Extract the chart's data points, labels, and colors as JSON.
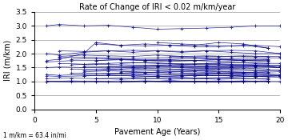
{
  "title": "Rate of Change of IRI < 0.02 m/km/year",
  "xlabel": "Pavement Age (Years)",
  "ylabel": "IRI (m/km)",
  "note": "1 m/km = 63.4 in/mi",
  "xlim": [
    0,
    20
  ],
  "ylim": [
    0,
    3.5
  ],
  "xticks": [
    0,
    5,
    10,
    15,
    20
  ],
  "yticks": [
    0.0,
    0.5,
    1.0,
    1.5,
    2.0,
    2.5,
    3.0,
    3.5
  ],
  "line_color": "#00008B",
  "marker": "+",
  "series": [
    {
      "x": [
        1,
        2,
        4,
        6,
        8,
        10,
        12,
        14,
        16,
        18,
        20
      ],
      "y": [
        3.0,
        3.05,
        3.0,
        3.02,
        2.95,
        2.88,
        2.9,
        2.92,
        2.95,
        3.0,
        3.0
      ]
    },
    {
      "x": [
        1,
        2,
        4,
        5,
        7,
        9,
        11,
        13,
        15,
        17,
        19
      ],
      "y": [
        1.75,
        1.8,
        2.0,
        2.4,
        2.3,
        2.35,
        2.3,
        2.3,
        2.4,
        2.35,
        2.2
      ]
    },
    {
      "x": [
        1,
        2,
        4,
        6,
        8,
        10,
        12,
        14,
        16,
        18,
        20
      ],
      "y": [
        2.0,
        1.95,
        2.05,
        2.1,
        2.05,
        2.1,
        2.05,
        2.1,
        2.05,
        2.0,
        2.0
      ]
    },
    {
      "x": [
        1,
        3,
        5,
        7,
        9,
        11,
        13,
        15,
        17,
        19
      ],
      "y": [
        1.7,
        1.75,
        1.75,
        1.8,
        1.75,
        1.75,
        1.75,
        1.8,
        1.75,
        1.75
      ]
    },
    {
      "x": [
        1,
        2,
        4,
        6,
        8,
        10,
        12,
        14,
        16,
        18,
        20
      ],
      "y": [
        1.5,
        1.52,
        1.5,
        1.48,
        1.5,
        1.52,
        1.5,
        1.48,
        1.5,
        1.52,
        1.5
      ]
    },
    {
      "x": [
        1,
        2,
        4,
        6,
        8,
        10,
        12,
        14,
        16,
        18,
        20
      ],
      "y": [
        1.25,
        1.22,
        1.25,
        1.28,
        1.25,
        1.22,
        1.25,
        1.28,
        1.25,
        1.22,
        1.2
      ]
    },
    {
      "x": [
        1,
        2,
        4,
        6,
        8,
        10,
        12,
        14,
        16,
        18,
        20
      ],
      "y": [
        1.2,
        1.18,
        1.2,
        1.22,
        1.2,
        1.18,
        1.2,
        1.22,
        1.2,
        1.18,
        1.2
      ]
    },
    {
      "x": [
        1,
        3,
        5,
        7,
        9,
        11,
        13,
        15,
        17,
        19
      ],
      "y": [
        1.0,
        0.98,
        1.0,
        1.02,
        1.0,
        0.98,
        1.0,
        1.02,
        1.0,
        1.0
      ]
    },
    {
      "x": [
        1,
        3,
        5,
        7,
        9,
        11,
        13,
        15,
        17,
        19
      ],
      "y": [
        1.1,
        1.12,
        1.1,
        1.08,
        1.1,
        1.12,
        1.1,
        1.08,
        1.1,
        1.1
      ]
    },
    {
      "x": [
        2,
        4,
        6,
        8,
        10,
        12,
        14,
        16,
        18,
        20
      ],
      "y": [
        1.9,
        1.95,
        1.92,
        1.9,
        1.95,
        1.9,
        1.92,
        1.9,
        1.9,
        1.9
      ]
    },
    {
      "x": [
        2,
        4,
        6,
        8,
        10,
        12,
        14,
        16,
        18,
        20
      ],
      "y": [
        1.65,
        1.62,
        1.65,
        1.68,
        1.65,
        1.62,
        1.65,
        1.68,
        1.65,
        1.65
      ]
    },
    {
      "x": [
        2,
        4,
        6,
        8,
        10,
        12,
        14,
        16,
        18,
        20
      ],
      "y": [
        1.85,
        1.88,
        1.85,
        1.82,
        1.85,
        1.88,
        1.85,
        1.82,
        1.85,
        1.85
      ]
    },
    {
      "x": [
        2,
        4,
        6,
        8,
        10,
        12,
        14,
        16,
        18,
        20
      ],
      "y": [
        2.1,
        2.08,
        2.1,
        2.12,
        2.1,
        2.08,
        2.1,
        2.12,
        2.1,
        2.0
      ]
    },
    {
      "x": [
        3,
        5,
        7,
        9,
        11,
        13,
        15,
        17,
        19
      ],
      "y": [
        1.6,
        1.62,
        1.6,
        1.58,
        1.6,
        1.62,
        1.6,
        1.58,
        1.6
      ]
    },
    {
      "x": [
        3,
        5,
        7,
        9,
        11,
        13,
        15,
        17,
        19
      ],
      "y": [
        1.45,
        1.42,
        1.45,
        1.48,
        1.45,
        1.42,
        1.45,
        1.48,
        1.45
      ]
    },
    {
      "x": [
        3,
        5,
        7,
        9,
        11,
        13,
        15,
        17,
        19
      ],
      "y": [
        1.3,
        1.28,
        1.3,
        1.32,
        1.3,
        1.28,
        1.3,
        1.32,
        1.3
      ]
    },
    {
      "x": [
        3,
        5,
        7,
        9,
        11,
        13,
        15,
        17,
        19
      ],
      "y": [
        1.8,
        1.82,
        1.8,
        1.78,
        1.8,
        1.82,
        1.8,
        1.78,
        1.8
      ]
    },
    {
      "x": [
        4,
        6,
        8,
        10,
        12,
        14,
        16,
        18,
        20
      ],
      "y": [
        1.35,
        1.38,
        1.35,
        1.32,
        1.35,
        1.38,
        1.35,
        1.32,
        1.35
      ]
    },
    {
      "x": [
        4,
        6,
        8,
        10,
        12,
        14,
        16,
        18,
        20
      ],
      "y": [
        1.4,
        1.42,
        1.4,
        1.38,
        1.4,
        1.42,
        1.4,
        1.38,
        1.4
      ]
    },
    {
      "x": [
        4,
        6,
        8,
        10,
        12,
        14,
        16,
        18,
        20
      ],
      "y": [
        1.55,
        1.52,
        1.55,
        1.58,
        1.55,
        1.52,
        1.55,
        1.58,
        1.5
      ]
    },
    {
      "x": [
        4,
        6,
        8,
        10,
        12,
        14,
        16,
        18,
        20
      ],
      "y": [
        1.2,
        1.22,
        1.2,
        1.18,
        1.2,
        1.22,
        1.2,
        1.18,
        1.2
      ]
    },
    {
      "x": [
        5,
        7,
        9,
        11,
        13,
        15,
        17,
        19
      ],
      "y": [
        2.35,
        2.3,
        2.28,
        2.3,
        2.25,
        2.25,
        2.3,
        2.2
      ]
    },
    {
      "x": [
        5,
        7,
        9,
        11,
        13,
        15,
        17,
        19
      ],
      "y": [
        1.75,
        1.78,
        1.75,
        1.72,
        1.75,
        1.78,
        1.75,
        1.72
      ]
    },
    {
      "x": [
        5,
        7,
        9,
        11,
        13,
        15,
        17,
        19
      ],
      "y": [
        1.1,
        1.12,
        1.1,
        1.08,
        1.1,
        1.12,
        1.1,
        1.08
      ]
    },
    {
      "x": [
        1,
        3,
        5,
        7,
        9,
        11,
        13,
        15,
        17,
        19
      ],
      "y": [
        1.0,
        1.02,
        1.0,
        0.98,
        1.0,
        1.02,
        1.0,
        0.98,
        1.0,
        1.0
      ]
    },
    {
      "x": [
        6,
        8,
        10,
        12,
        14,
        16,
        18,
        20
      ],
      "y": [
        1.55,
        1.52,
        1.55,
        1.58,
        1.55,
        1.52,
        1.55,
        1.55
      ]
    },
    {
      "x": [
        6,
        8,
        10,
        12,
        14,
        16,
        18,
        20
      ],
      "y": [
        1.25,
        1.28,
        1.25,
        1.22,
        1.25,
        1.28,
        1.25,
        1.22
      ]
    },
    {
      "x": [
        7,
        9,
        11,
        13,
        15,
        17,
        19
      ],
      "y": [
        1.65,
        1.68,
        1.65,
        1.62,
        1.65,
        1.68,
        1.65
      ]
    },
    {
      "x": [
        7,
        9,
        11,
        13,
        15,
        17,
        19
      ],
      "y": [
        1.35,
        1.32,
        1.35,
        1.38,
        1.35,
        1.32,
        1.35
      ]
    },
    {
      "x": [
        7,
        9,
        11,
        13,
        15,
        17,
        19
      ],
      "y": [
        1.0,
        1.02,
        1.0,
        0.98,
        1.0,
        1.02,
        1.0
      ]
    },
    {
      "x": [
        8,
        10,
        12,
        14,
        16,
        18,
        20
      ],
      "y": [
        1.45,
        1.42,
        1.45,
        1.48,
        1.45,
        1.42,
        1.4
      ]
    },
    {
      "x": [
        8,
        10,
        12,
        14,
        16,
        18,
        20
      ],
      "y": [
        1.15,
        1.18,
        1.15,
        1.12,
        1.15,
        1.18,
        1.15
      ]
    },
    {
      "x": [
        9,
        11,
        13,
        15,
        17,
        19
      ],
      "y": [
        1.75,
        1.78,
        1.75,
        1.72,
        1.75,
        1.78
      ]
    },
    {
      "x": [
        9,
        11,
        13,
        15,
        17,
        19
      ],
      "y": [
        1.0,
        1.02,
        1.0,
        0.98,
        1.0,
        1.02
      ]
    },
    {
      "x": [
        10,
        12,
        14,
        16,
        18,
        20
      ],
      "y": [
        2.4,
        2.35,
        2.3,
        2.28,
        2.3,
        2.25
      ]
    },
    {
      "x": [
        10,
        12,
        14,
        16,
        18,
        20
      ],
      "y": [
        1.55,
        1.52,
        1.55,
        1.58,
        1.55,
        1.5
      ]
    },
    {
      "x": [
        11,
        13,
        15,
        17,
        19
      ],
      "y": [
        1.9,
        1.88,
        1.9,
        1.92,
        1.9
      ]
    },
    {
      "x": [
        12,
        14,
        16,
        18,
        20
      ],
      "y": [
        1.3,
        1.32,
        1.3,
        1.28,
        1.25
      ]
    },
    {
      "x": [
        13,
        15,
        17,
        19
      ],
      "y": [
        1.2,
        1.22,
        1.2,
        1.18
      ]
    },
    {
      "x": [
        14,
        16,
        18,
        20
      ],
      "y": [
        1.6,
        1.62,
        1.6,
        1.58
      ]
    },
    {
      "x": [
        1,
        4,
        6,
        9,
        11,
        14,
        16,
        18,
        20
      ],
      "y": [
        1.0,
        1.0,
        0.98,
        1.0,
        1.02,
        1.0,
        0.98,
        1.0,
        1.0
      ]
    }
  ]
}
